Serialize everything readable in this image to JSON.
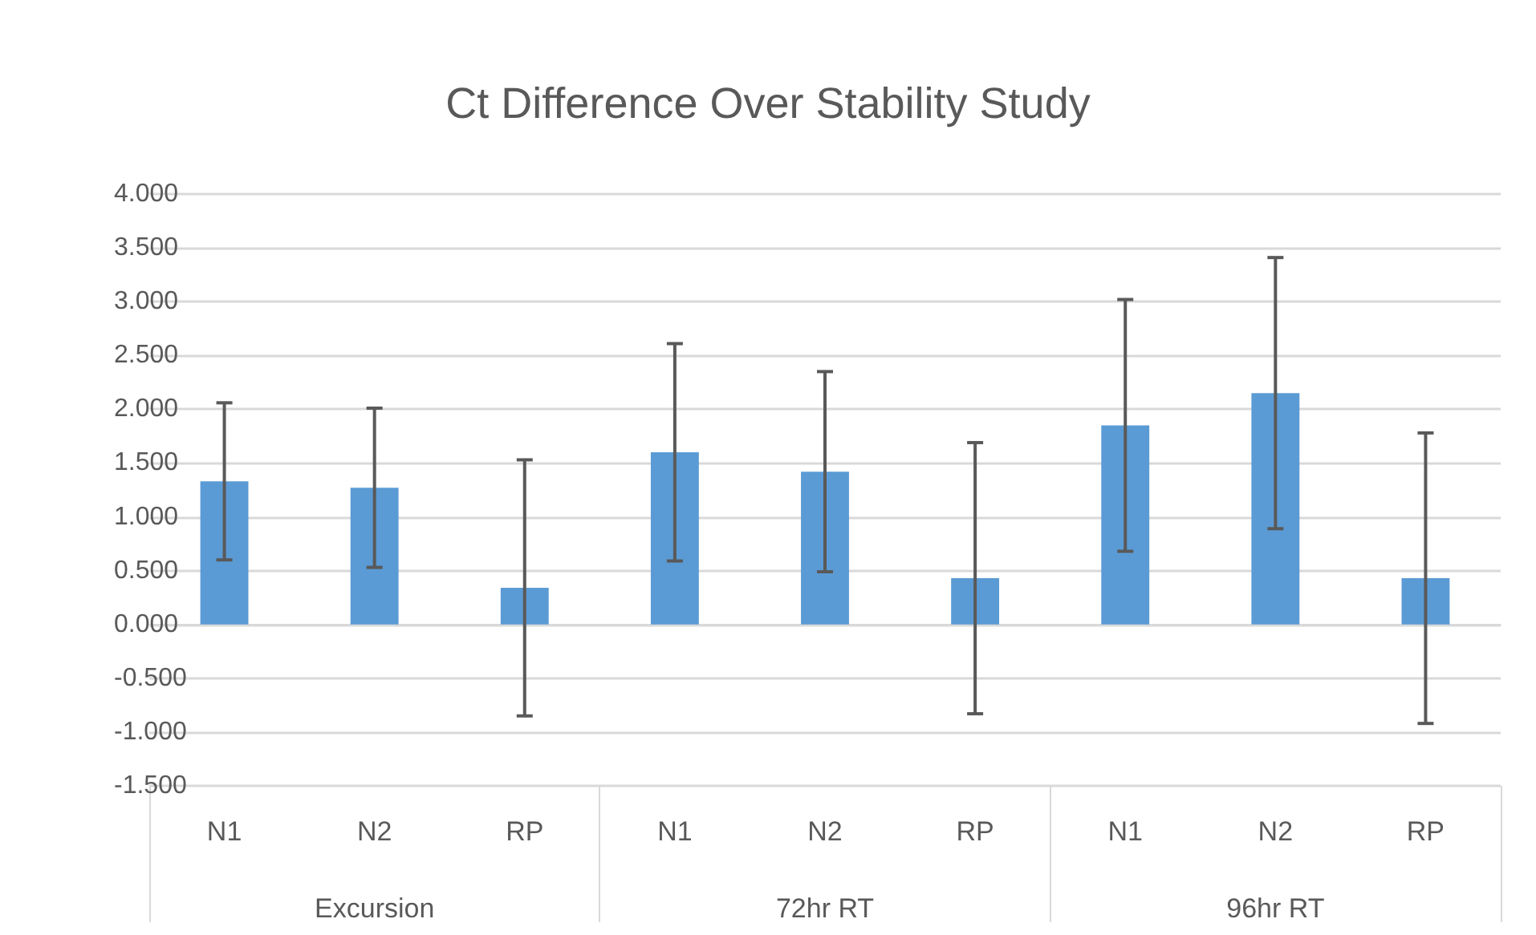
{
  "chart_data": {
    "type": "bar",
    "title": "Ct Difference Over Stability Study",
    "categories": [
      "N1",
      "N2",
      "RP",
      "N1",
      "N2",
      "RP",
      "N1",
      "N2",
      "RP"
    ],
    "annotations": [
      "Excursion",
      "72hr RT",
      "96hr RT"
    ],
    "values": [
      1.33,
      1.27,
      0.34,
      1.6,
      1.42,
      0.43,
      1.85,
      2.15,
      0.43
    ],
    "errors": [
      0.73,
      0.74,
      1.19,
      1.01,
      0.93,
      1.26,
      1.17,
      1.26,
      1.35
    ],
    "color": "#5b9bd5",
    "ylim": [
      -1.5,
      4
    ],
    "yticks": [
      {
        "value": -1.5,
        "label": "-1.500"
      },
      {
        "value": -1,
        "label": "-1.000"
      },
      {
        "value": -0.5,
        "label": "-0.500"
      },
      {
        "value": 0,
        "label": "0.000"
      },
      {
        "value": 0.5,
        "label": "0.500"
      },
      {
        "value": 1,
        "label": "1.000"
      },
      {
        "value": 1.5,
        "label": "1.500"
      },
      {
        "value": 2,
        "label": "2.000"
      },
      {
        "value": 2.5,
        "label": "2.500"
      },
      {
        "value": 3,
        "label": "3.000"
      },
      {
        "value": 3.5,
        "label": "3.500"
      },
      {
        "value": 4,
        "label": "4.000"
      }
    ],
    "grid": "y"
  }
}
